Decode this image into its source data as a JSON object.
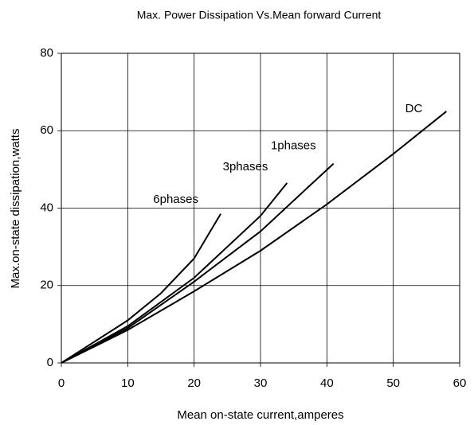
{
  "chart_data": {
    "type": "line",
    "title": "Max. Power Dissipation Vs.Mean forward Current",
    "xlabel": "Mean on-state current,amperes",
    "ylabel": "Max.on-state dissipation,watts",
    "xlim": [
      0,
      60
    ],
    "xticks": [
      0,
      10,
      20,
      30,
      40,
      50,
      60
    ],
    "ylim": [
      0,
      80
    ],
    "yticks": [
      0,
      20,
      40,
      60,
      80
    ],
    "grid": true,
    "series": [
      {
        "name": "DC",
        "color": "#000000",
        "x": [
          0,
          10,
          20,
          30,
          40,
          50,
          58
        ],
        "values": [
          0,
          8.5,
          18.5,
          29,
          41,
          54,
          65
        ]
      },
      {
        "name": "1phases",
        "color": "#000000",
        "x": [
          0,
          10,
          20,
          30,
          41
        ],
        "values": [
          0,
          9,
          21,
          34,
          51.5
        ]
      },
      {
        "name": "3phases",
        "color": "#000000",
        "x": [
          0,
          10,
          20,
          30,
          34
        ],
        "values": [
          0,
          9.5,
          22,
          38,
          46.5
        ]
      },
      {
        "name": "6phases",
        "color": "#000000",
        "x": [
          0,
          10,
          15,
          20,
          24
        ],
        "values": [
          0,
          11,
          18,
          27,
          38.5
        ]
      }
    ]
  }
}
